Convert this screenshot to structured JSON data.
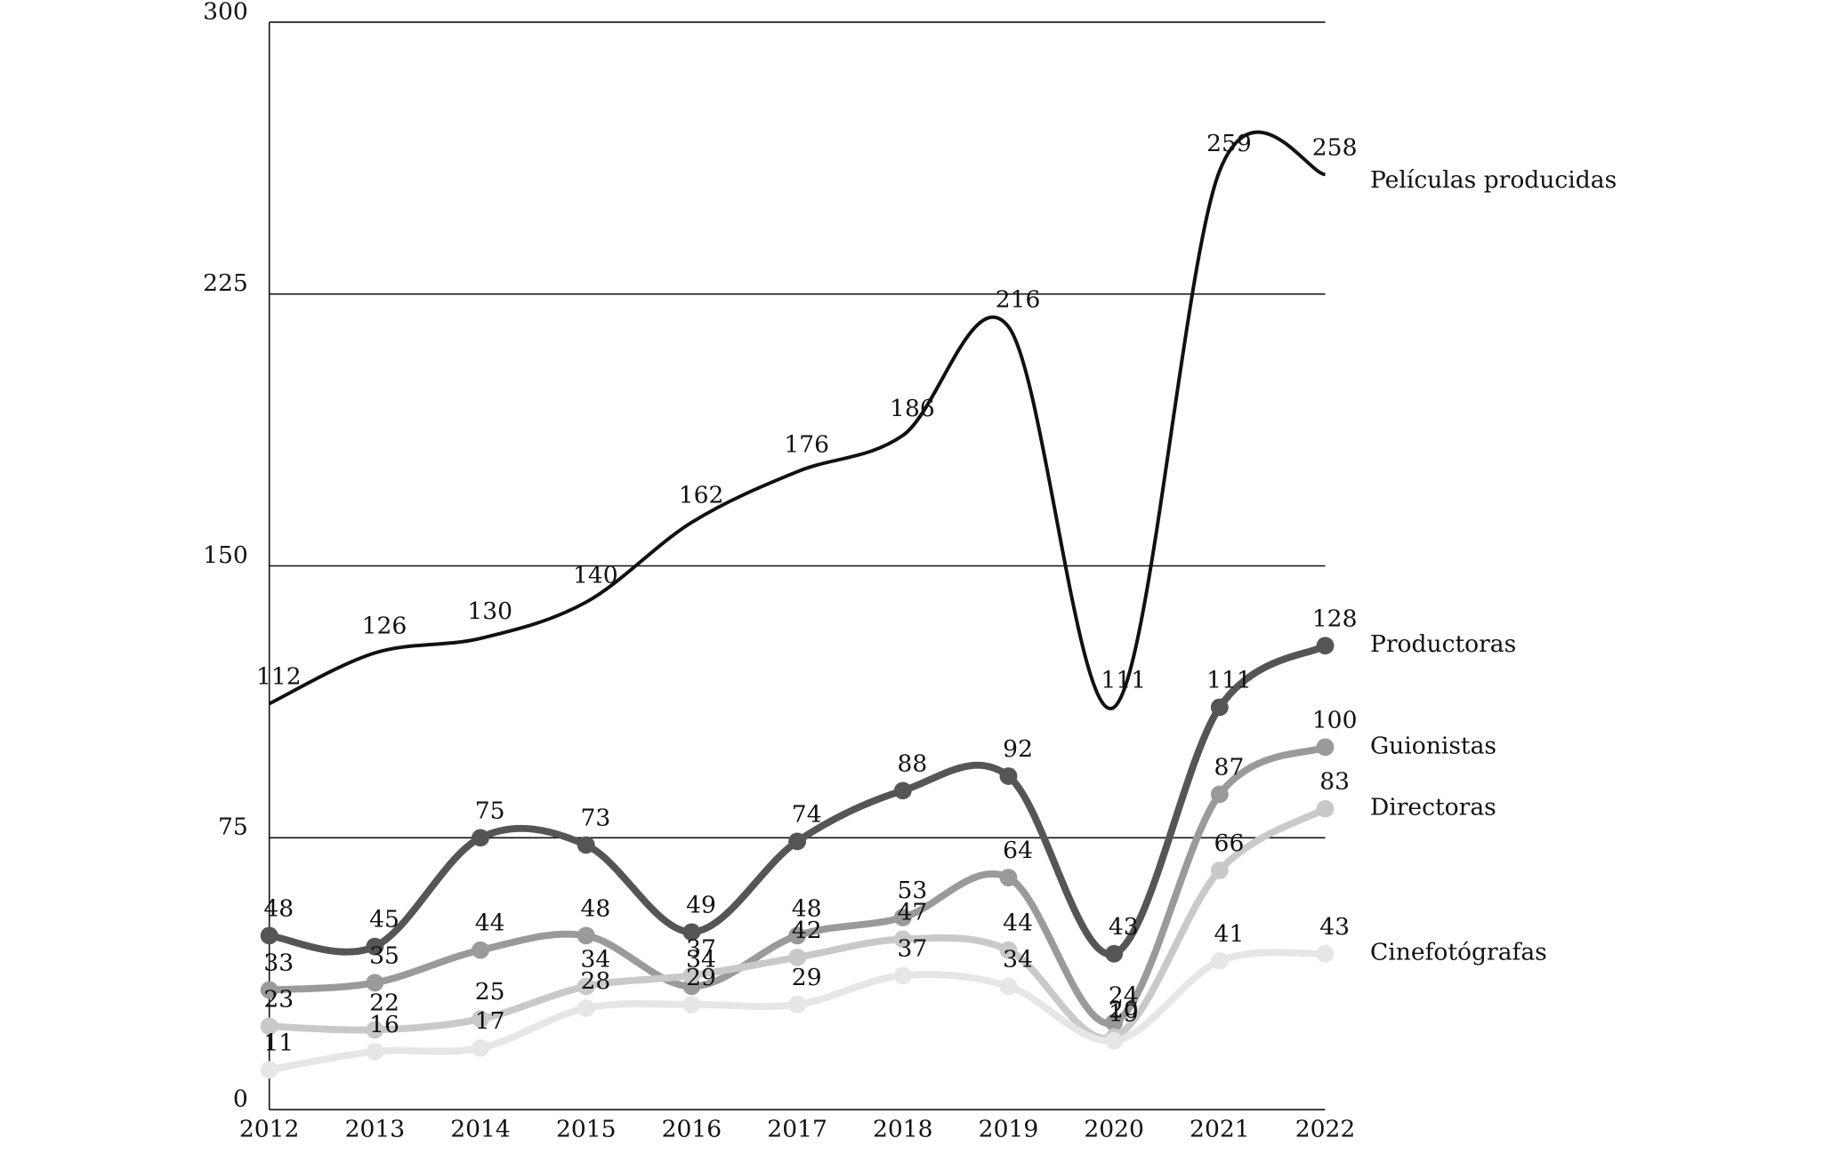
{
  "chart_data": {
    "type": "line",
    "categories": [
      "2012",
      "2013",
      "2014",
      "2015",
      "2016",
      "2017",
      "2018",
      "2019",
      "2020",
      "2021",
      "2022"
    ],
    "ylim": [
      0,
      300
    ],
    "yticks": [
      0,
      75,
      150,
      225,
      300
    ],
    "grid": true,
    "series": [
      {
        "name": "Películas producidas",
        "color": "#111111",
        "markers": false,
        "values": [
          112,
          126,
          130,
          140,
          162,
          176,
          186,
          216,
          111,
          259,
          258
        ]
      },
      {
        "name": "Productoras",
        "color": "#555555",
        "markers": true,
        "values": [
          48,
          45,
          75,
          73,
          49,
          74,
          88,
          92,
          43,
          111,
          128
        ]
      },
      {
        "name": "Guionistas",
        "color": "#9a9a9a",
        "markers": true,
        "values": [
          33,
          35,
          44,
          48,
          34,
          48,
          53,
          64,
          24,
          87,
          100
        ]
      },
      {
        "name": "Directoras",
        "color": "#c9c9c9",
        "markers": true,
        "values": [
          23,
          22,
          25,
          34,
          37,
          42,
          47,
          44,
          20,
          66,
          83
        ]
      },
      {
        "name": "Cinefotógrafas",
        "color": "#e6e6e6",
        "markers": true,
        "values": [
          11,
          16,
          17,
          28,
          29,
          29,
          37,
          34,
          19,
          41,
          43
        ]
      }
    ]
  }
}
